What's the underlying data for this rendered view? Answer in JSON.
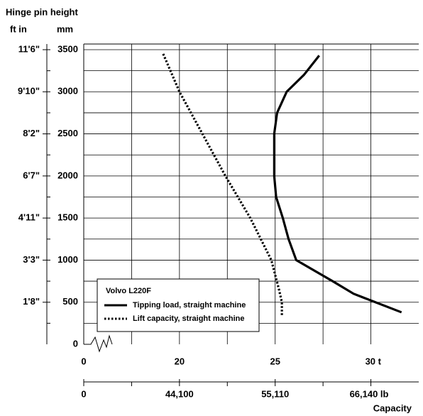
{
  "chart_data": {
    "type": "line",
    "ylabel": "Hinge pin height",
    "y2label": "ft in",
    "ylabel_unit": "mm",
    "xlabel": "Capacity",
    "legend_title": "Volvo L220F",
    "legend": "lower-left",
    "xbreak": [
      0,
      15
    ],
    "xlim": [
      0,
      32.5
    ],
    "xticks": [
      0,
      20,
      25,
      {
        "value": 30,
        "label": "30 t"
      }
    ],
    "xminorticks": [
      17.5,
      22.5,
      27.5
    ],
    "x2ticks": [
      {
        "value": 0,
        "label": "0"
      },
      {
        "value": 20,
        "label": "44,100"
      },
      {
        "value": 25,
        "label": "55,110"
      },
      {
        "value": 30,
        "label": "66,140 lb"
      }
    ],
    "ylim": [
      0,
      3500
    ],
    "yticks": [
      0,
      500,
      1000,
      1500,
      2000,
      2500,
      3000,
      3500
    ],
    "yminorticks": [
      250,
      750,
      1250,
      1750,
      2250,
      2750,
      3250
    ],
    "y2lim": [
      0,
      3500
    ],
    "y2ticks": [
      {
        "value": 500,
        "label": "1'8\""
      },
      {
        "value": 1000,
        "label": "3'3\""
      },
      {
        "value": 1500,
        "label": "4'11\""
      },
      {
        "value": 2000,
        "label": "6'7\""
      },
      {
        "value": 2500,
        "label": "8'2\""
      },
      {
        "value": 3000,
        "label": "9'10\""
      },
      {
        "value": 3500,
        "label": "11'6\""
      }
    ],
    "grid": true,
    "series": [
      {
        "name": "Tipping load, straight machine",
        "color": "#000000",
        "dash": "solid",
        "x": [
          27.3,
          26.5,
          25.6,
          25.1,
          24.95,
          24.95,
          24.95,
          25.05,
          25.4,
          25.7,
          26.1,
          28.0,
          29.1,
          31.6
        ],
        "values": [
          3430,
          3200,
          3000,
          2750,
          2500,
          2250,
          2000,
          1750,
          1500,
          1250,
          1000,
          750,
          600,
          380
        ]
      },
      {
        "name": "Lift capacity, straight machine",
        "color": "#000000",
        "dash": "dotted",
        "x": [
          19.15,
          20.0,
          21.2,
          22.4,
          23.7,
          24.8,
          25.2,
          25.35,
          25.35
        ],
        "values": [
          3450,
          3000,
          2500,
          2000,
          1500,
          1000,
          650,
          500,
          340
        ]
      }
    ]
  }
}
